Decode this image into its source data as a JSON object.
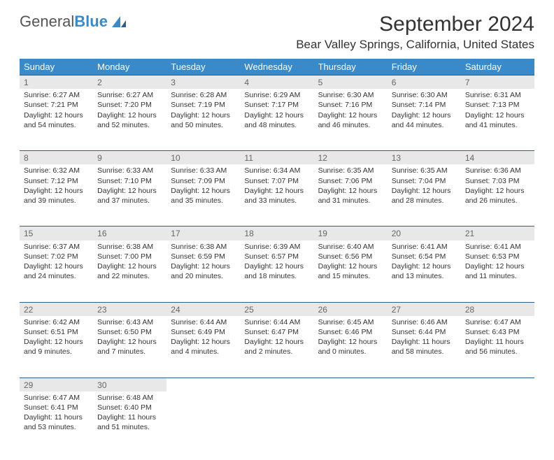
{
  "brand": {
    "part1": "General",
    "part2": "Blue"
  },
  "title": "September 2024",
  "location": "Bear Valley Springs, California, United States",
  "colors": {
    "header_bg": "#3a8ac9",
    "header_text": "#ffffff",
    "daynum_bg": "#e8e8e8",
    "daynum_text": "#666666",
    "rule": "#2e5e8a",
    "body_text": "#333333"
  },
  "day_headers": [
    "Sunday",
    "Monday",
    "Tuesday",
    "Wednesday",
    "Thursday",
    "Friday",
    "Saturday"
  ],
  "weeks": [
    {
      "nums": [
        "1",
        "2",
        "3",
        "4",
        "5",
        "6",
        "7"
      ],
      "cells": [
        [
          "Sunrise: 6:27 AM",
          "Sunset: 7:21 PM",
          "Daylight: 12 hours",
          "and 54 minutes."
        ],
        [
          "Sunrise: 6:27 AM",
          "Sunset: 7:20 PM",
          "Daylight: 12 hours",
          "and 52 minutes."
        ],
        [
          "Sunrise: 6:28 AM",
          "Sunset: 7:19 PM",
          "Daylight: 12 hours",
          "and 50 minutes."
        ],
        [
          "Sunrise: 6:29 AM",
          "Sunset: 7:17 PM",
          "Daylight: 12 hours",
          "and 48 minutes."
        ],
        [
          "Sunrise: 6:30 AM",
          "Sunset: 7:16 PM",
          "Daylight: 12 hours",
          "and 46 minutes."
        ],
        [
          "Sunrise: 6:30 AM",
          "Sunset: 7:14 PM",
          "Daylight: 12 hours",
          "and 44 minutes."
        ],
        [
          "Sunrise: 6:31 AM",
          "Sunset: 7:13 PM",
          "Daylight: 12 hours",
          "and 41 minutes."
        ]
      ]
    },
    {
      "nums": [
        "8",
        "9",
        "10",
        "11",
        "12",
        "13",
        "14"
      ],
      "cells": [
        [
          "Sunrise: 6:32 AM",
          "Sunset: 7:12 PM",
          "Daylight: 12 hours",
          "and 39 minutes."
        ],
        [
          "Sunrise: 6:33 AM",
          "Sunset: 7:10 PM",
          "Daylight: 12 hours",
          "and 37 minutes."
        ],
        [
          "Sunrise: 6:33 AM",
          "Sunset: 7:09 PM",
          "Daylight: 12 hours",
          "and 35 minutes."
        ],
        [
          "Sunrise: 6:34 AM",
          "Sunset: 7:07 PM",
          "Daylight: 12 hours",
          "and 33 minutes."
        ],
        [
          "Sunrise: 6:35 AM",
          "Sunset: 7:06 PM",
          "Daylight: 12 hours",
          "and 31 minutes."
        ],
        [
          "Sunrise: 6:35 AM",
          "Sunset: 7:04 PM",
          "Daylight: 12 hours",
          "and 28 minutes."
        ],
        [
          "Sunrise: 6:36 AM",
          "Sunset: 7:03 PM",
          "Daylight: 12 hours",
          "and 26 minutes."
        ]
      ]
    },
    {
      "nums": [
        "15",
        "16",
        "17",
        "18",
        "19",
        "20",
        "21"
      ],
      "cells": [
        [
          "Sunrise: 6:37 AM",
          "Sunset: 7:02 PM",
          "Daylight: 12 hours",
          "and 24 minutes."
        ],
        [
          "Sunrise: 6:38 AM",
          "Sunset: 7:00 PM",
          "Daylight: 12 hours",
          "and 22 minutes."
        ],
        [
          "Sunrise: 6:38 AM",
          "Sunset: 6:59 PM",
          "Daylight: 12 hours",
          "and 20 minutes."
        ],
        [
          "Sunrise: 6:39 AM",
          "Sunset: 6:57 PM",
          "Daylight: 12 hours",
          "and 18 minutes."
        ],
        [
          "Sunrise: 6:40 AM",
          "Sunset: 6:56 PM",
          "Daylight: 12 hours",
          "and 15 minutes."
        ],
        [
          "Sunrise: 6:41 AM",
          "Sunset: 6:54 PM",
          "Daylight: 12 hours",
          "and 13 minutes."
        ],
        [
          "Sunrise: 6:41 AM",
          "Sunset: 6:53 PM",
          "Daylight: 12 hours",
          "and 11 minutes."
        ]
      ]
    },
    {
      "nums": [
        "22",
        "23",
        "24",
        "25",
        "26",
        "27",
        "28"
      ],
      "cells": [
        [
          "Sunrise: 6:42 AM",
          "Sunset: 6:51 PM",
          "Daylight: 12 hours",
          "and 9 minutes."
        ],
        [
          "Sunrise: 6:43 AM",
          "Sunset: 6:50 PM",
          "Daylight: 12 hours",
          "and 7 minutes."
        ],
        [
          "Sunrise: 6:44 AM",
          "Sunset: 6:49 PM",
          "Daylight: 12 hours",
          "and 4 minutes."
        ],
        [
          "Sunrise: 6:44 AM",
          "Sunset: 6:47 PM",
          "Daylight: 12 hours",
          "and 2 minutes."
        ],
        [
          "Sunrise: 6:45 AM",
          "Sunset: 6:46 PM",
          "Daylight: 12 hours",
          "and 0 minutes."
        ],
        [
          "Sunrise: 6:46 AM",
          "Sunset: 6:44 PM",
          "Daylight: 11 hours",
          "and 58 minutes."
        ],
        [
          "Sunrise: 6:47 AM",
          "Sunset: 6:43 PM",
          "Daylight: 11 hours",
          "and 56 minutes."
        ]
      ]
    },
    {
      "nums": [
        "29",
        "30",
        "",
        "",
        "",
        "",
        ""
      ],
      "cells": [
        [
          "Sunrise: 6:47 AM",
          "Sunset: 6:41 PM",
          "Daylight: 11 hours",
          "and 53 minutes."
        ],
        [
          "Sunrise: 6:48 AM",
          "Sunset: 6:40 PM",
          "Daylight: 11 hours",
          "and 51 minutes."
        ],
        [],
        [],
        [],
        [],
        []
      ]
    }
  ]
}
